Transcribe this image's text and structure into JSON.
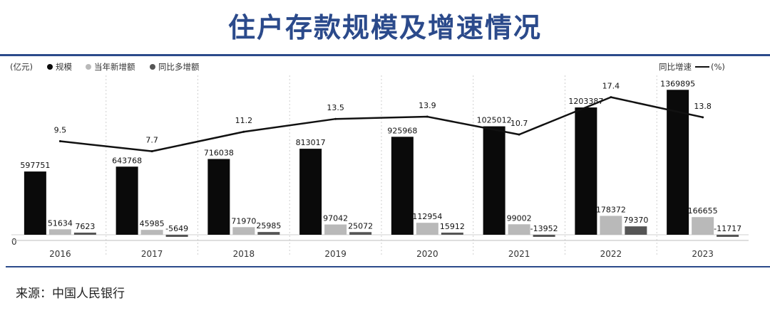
{
  "title": "住户存款规模及增速情况",
  "source": "来源：中国人民银行",
  "chart_data": {
    "type": "bar",
    "unit_left": "(亿元)",
    "unit_right": "(%)",
    "categories": [
      "2016",
      "2017",
      "2018",
      "2019",
      "2020",
      "2021",
      "2022",
      "2023"
    ],
    "series": [
      {
        "name": "规模",
        "kind": "bar",
        "color": "#0a0a0a",
        "values": [
          597751,
          643768,
          716038,
          813017,
          925968,
          1025012,
          1203387,
          1369895
        ]
      },
      {
        "name": "当年新增额",
        "kind": "bar",
        "color": "#b9b9b9",
        "values": [
          51634,
          45985,
          71970,
          97042,
          112954,
          99002,
          178372,
          166655
        ]
      },
      {
        "name": "同比多增额",
        "kind": "bar",
        "color": "#555555",
        "values": [
          7623,
          -5649,
          25985,
          25072,
          15912,
          -13952,
          79370,
          -11717
        ]
      },
      {
        "name": "同比增速",
        "kind": "line",
        "color": "#111111",
        "axis": "right",
        "values": [
          9.5,
          7.7,
          11.2,
          13.5,
          13.9,
          10.7,
          17.4,
          13.8
        ]
      }
    ],
    "ylim_left": [
      -40000,
      1560000
    ],
    "ylim_right": [
      0,
      18.5
    ],
    "zero_label": "0",
    "grid": "vertical-dashed",
    "legend": "top"
  }
}
